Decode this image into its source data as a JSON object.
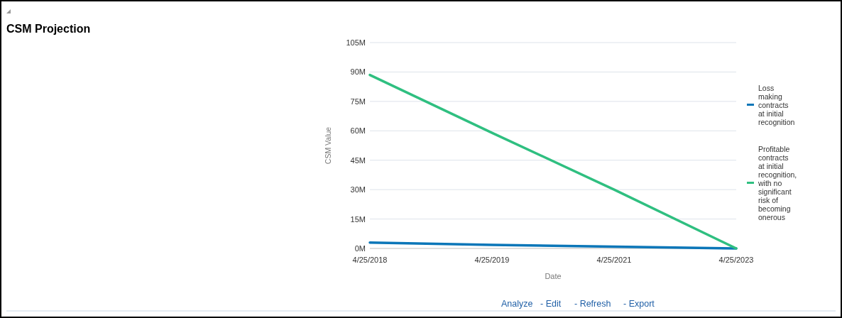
{
  "chart_data": {
    "type": "line",
    "title": "CSM Projection",
    "xlabel": "Date",
    "ylabel": "CSM Value",
    "categories": [
      "4/25/2018",
      "4/25/2019",
      "4/25/2021",
      "4/25/2023"
    ],
    "series": [
      {
        "name": "Loss making contracts at initial recognition",
        "color": "#0b76b8",
        "values": [
          3,
          1.8,
          0.9,
          0
        ]
      },
      {
        "name": "Profitable contracts at initial recognition, with no significant risk of becoming onerous",
        "color": "#2fbf80",
        "values": [
          88.5,
          59,
          30,
          0
        ]
      }
    ],
    "ylim": [
      0,
      105
    ],
    "yticks": [
      {
        "value": 0,
        "label": "0M"
      },
      {
        "value": 15,
        "label": "15M"
      },
      {
        "value": 30,
        "label": "30M"
      },
      {
        "value": 45,
        "label": "45M"
      },
      {
        "value": 60,
        "label": "60M"
      },
      {
        "value": 75,
        "label": "75M"
      },
      {
        "value": 90,
        "label": "90M"
      },
      {
        "value": 105,
        "label": "105M"
      }
    ],
    "grid": "y",
    "legend": "right",
    "marker": "none",
    "line_style": "solid",
    "annotations": [
      "Analyze",
      "- Edit",
      "- Refresh",
      "- Export"
    ]
  }
}
